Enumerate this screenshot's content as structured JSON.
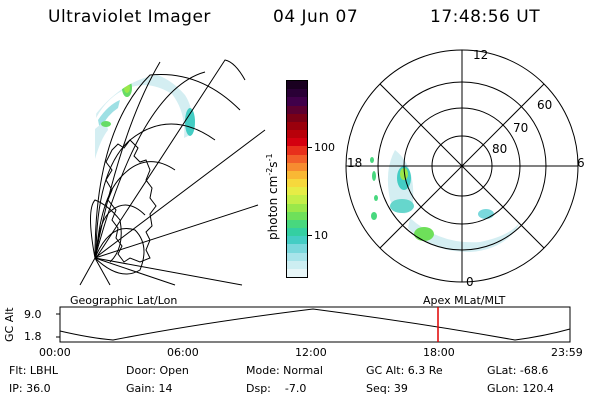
{
  "header": {
    "instrument": "Ultraviolet Imager",
    "date": "04 Jun 07",
    "time": "17:48:56 UT"
  },
  "colorbar": {
    "unit_label": "photon cm",
    "unit_exp1": "-2",
    "unit_s": "s",
    "unit_exp2": "-1",
    "ticks": [
      "100",
      "10"
    ],
    "colors_top_to_bottom": [
      "#1a0020",
      "#2a0036",
      "#40004a",
      "#5c0030",
      "#7a0016",
      "#9a000c",
      "#b8000a",
      "#d40010",
      "#e8301c",
      "#f2602a",
      "#f78c30",
      "#f9b834",
      "#f6d83c",
      "#e6ec46",
      "#c4ee48",
      "#9ae84a",
      "#6ee05a",
      "#48d87e",
      "#34cfa2",
      "#44cdc4",
      "#7ad8dc",
      "#a8e4ea",
      "#cdeef2",
      "#e8f6f8"
    ]
  },
  "polar_plot": {
    "mlt_labels": [
      "12",
      "18",
      "6",
      "0"
    ],
    "lat_labels": [
      "60",
      "70",
      "80"
    ]
  },
  "altitude_plot": {
    "left_title": "Geographic Lat/Lon",
    "right_title": "Apex MLat/MLT",
    "ylabel": "GC Alt",
    "y_ticks": [
      "9.0",
      "1.8"
    ],
    "x_ticks": [
      "00:00",
      "06:00",
      "12:00",
      "18:00",
      "23:59"
    ],
    "marker_color": "#e00000"
  },
  "status": {
    "flt": "Flt: LBHL",
    "ip": "IP: 36.0",
    "door": "Door: Open",
    "gain": "Gain: 14",
    "mode": "Mode: Normal",
    "dsp": "Dsp:    -7.0",
    "gc_alt": "GC Alt: 6.3 Re",
    "seq": "Seq: 39",
    "glat": "GLat: -68.6",
    "glon": "GLon: 120.4"
  }
}
